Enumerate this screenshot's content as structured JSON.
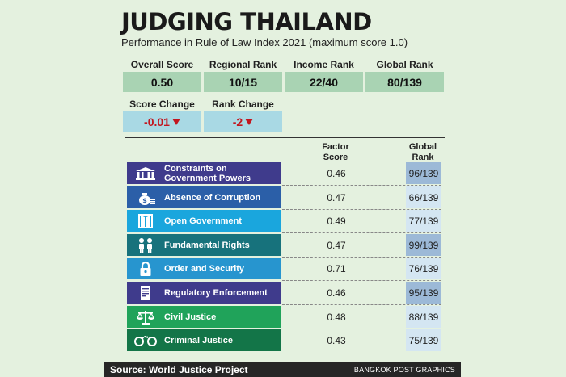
{
  "title": "JUDGING THAILAND",
  "subtitle": "Performance in Rule of Law Index 2021 (maximum score 1.0)",
  "stats": [
    {
      "label": "Overall Score",
      "value": "0.50"
    },
    {
      "label": "Regional Rank",
      "value": "10/15"
    },
    {
      "label": "Income Rank",
      "value": "22/40"
    },
    {
      "label": "Global Rank",
      "value": "80/139"
    }
  ],
  "changes": [
    {
      "label": "Score Change",
      "value": "-0.01"
    },
    {
      "label": "Rank Change",
      "value": "-2"
    }
  ],
  "table": {
    "col_factor_score": "Factor\nScore",
    "col_global_rank": "Global\nRank",
    "rows": [
      {
        "factor": "Constraints on Government Powers",
        "score": "0.46",
        "rank": "96/139",
        "color": "#3f3b8c",
        "rank_bg": "#9cb9d7",
        "icon": "courthouse-icon"
      },
      {
        "factor": "Absence of Corruption",
        "score": "0.47",
        "rank": "66/139",
        "color": "#2b5fa8",
        "rank_bg": "#d4e6f2",
        "icon": "money-bag-icon"
      },
      {
        "factor": "Open Government",
        "score": "0.49",
        "rank": "77/139",
        "color": "#1aa6dd",
        "rank_bg": "#d4e6f2",
        "icon": "open-door-icon"
      },
      {
        "factor": "Fundamental Rights",
        "score": "0.47",
        "rank": "99/139",
        "color": "#17727c",
        "rank_bg": "#9cb9d7",
        "icon": "people-icon"
      },
      {
        "factor": "Order and Security",
        "score": "0.71",
        "rank": "76/139",
        "color": "#2795cf",
        "rank_bg": "#d4e6f2",
        "icon": "padlock-icon"
      },
      {
        "factor": "Regulatory Enforcement",
        "score": "0.46",
        "rank": "95/139",
        "color": "#3f3b8c",
        "rank_bg": "#9cb9d7",
        "icon": "document-icon"
      },
      {
        "factor": "Civil Justice",
        "score": "0.48",
        "rank": "88/139",
        "color": "#20a35a",
        "rank_bg": "#d4e6f2",
        "icon": "scales-icon"
      },
      {
        "factor": "Criminal Justice",
        "score": "0.43",
        "rank": "75/139",
        "color": "#137548",
        "rank_bg": "#d4e6f2",
        "icon": "handcuffs-icon"
      }
    ]
  },
  "footer": {
    "source": "Source: World Justice Project",
    "brand": "BANGKOK POST GRAPHICS"
  }
}
